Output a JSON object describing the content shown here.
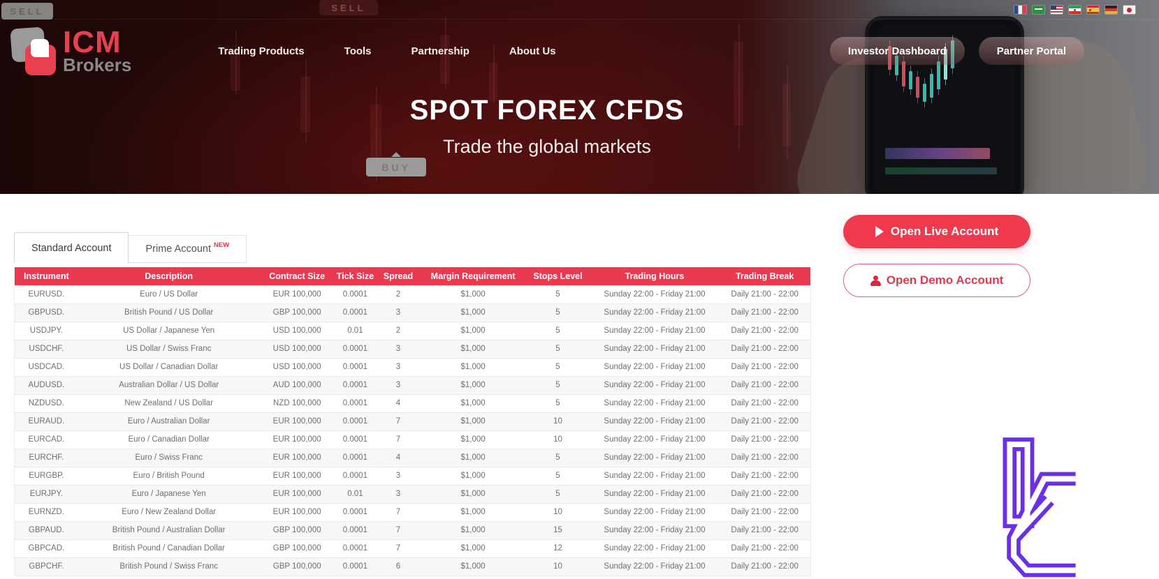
{
  "topbar": {
    "sell_badge_left": "SELL",
    "sell_badge_mid": "SELL",
    "flags": [
      {
        "name": "flag-france",
        "cls": "flag-fr"
      },
      {
        "name": "flag-saudi-arabia",
        "cls": "flag-sa"
      },
      {
        "name": "flag-usa",
        "cls": "flag-us"
      },
      {
        "name": "flag-iran",
        "cls": "flag-ir"
      },
      {
        "name": "flag-spain",
        "cls": "flag-es"
      },
      {
        "name": "flag-germany",
        "cls": "flag-de"
      },
      {
        "name": "flag-japan",
        "cls": "flag-jp"
      }
    ]
  },
  "header": {
    "logo": {
      "icm": "ICM",
      "brokers": "Brokers"
    },
    "nav": [
      {
        "label": "Trading Products"
      },
      {
        "label": "Tools"
      },
      {
        "label": "Partnership"
      },
      {
        "label": "About Us"
      }
    ],
    "buttons": {
      "investor": "Investor Dashboard",
      "partner": "Partner Portal"
    }
  },
  "hero": {
    "title": "SPOT FOREX CFDS",
    "subtitle": "Trade the global markets",
    "buy_badge": "BUY"
  },
  "tabs": {
    "standard": "Standard Account",
    "prime": "Prime Account",
    "prime_badge": "NEW"
  },
  "cta": {
    "live": "Open Live Account",
    "demo": "Open Demo Account"
  },
  "table": {
    "columns": [
      "Instrument",
      "Description",
      "Contract Size",
      "Tick Size",
      "Spread",
      "Margin Requirement",
      "Stops Level",
      "Trading Hours",
      "Trading Break"
    ],
    "rows": [
      [
        "EURUSD.",
        "Euro / US Dollar",
        "EUR 100,000",
        "0.0001",
        "2",
        "$1,000",
        "5",
        "Sunday 22:00 - Friday 21:00",
        "Daily 21:00 - 22:00"
      ],
      [
        "GBPUSD.",
        "British Pound / US Dollar",
        "GBP 100,000",
        "0.0001",
        "3",
        "$1,000",
        "5",
        "Sunday 22:00 - Friday 21:00",
        "Daily 21:00 - 22:00"
      ],
      [
        "USDJPY.",
        "US Dollar / Japanese Yen",
        "USD 100,000",
        "0.01",
        "2",
        "$1,000",
        "5",
        "Sunday 22:00 - Friday 21:00",
        "Daily 21:00 - 22:00"
      ],
      [
        "USDCHF.",
        "US Dollar / Swiss Franc",
        "USD 100,000",
        "0.0001",
        "3",
        "$1,000",
        "5",
        "Sunday 22:00 - Friday 21:00",
        "Daily 21:00 - 22:00"
      ],
      [
        "USDCAD.",
        "US Dollar / Canadian Dollar",
        "USD 100,000",
        "0.0001",
        "3",
        "$1,000",
        "5",
        "Sunday 22:00 - Friday 21:00",
        "Daily 21:00 - 22:00"
      ],
      [
        "AUDUSD.",
        "Australian Dollar / US Dollar",
        "AUD 100,000",
        "0.0001",
        "3",
        "$1,000",
        "5",
        "Sunday 22:00 - Friday 21:00",
        "Daily 21:00 - 22:00"
      ],
      [
        "NZDUSD.",
        "New Zealand / US Dollar",
        "NZD 100,000",
        "0.0001",
        "4",
        "$1,000",
        "5",
        "Sunday 22:00 - Friday 21:00",
        "Daily 21:00 - 22:00"
      ],
      [
        "EURAUD.",
        "Euro / Australian Dollar",
        "EUR 100,000",
        "0.0001",
        "7",
        "$1,000",
        "10",
        "Sunday 22:00 - Friday 21:00",
        "Daily 21:00 - 22:00"
      ],
      [
        "EURCAD.",
        "Euro / Canadian Dollar",
        "EUR 100,000",
        "0.0001",
        "7",
        "$1,000",
        "10",
        "Sunday 22:00 - Friday 21:00",
        "Daily 21:00 - 22:00"
      ],
      [
        "EURCHF.",
        "Euro / Swiss Franc",
        "EUR 100,000",
        "0.0001",
        "4",
        "$1,000",
        "5",
        "Sunday 22:00 - Friday 21:00",
        "Daily 21:00 - 22:00"
      ],
      [
        "EURGBP.",
        "Euro / British Pound",
        "EUR 100,000",
        "0.0001",
        "3",
        "$1,000",
        "5",
        "Sunday 22:00 - Friday 21:00",
        "Daily 21:00 - 22:00"
      ],
      [
        "EURJPY.",
        "Euro / Japanese Yen",
        "EUR 100,000",
        "0.01",
        "3",
        "$1,000",
        "5",
        "Sunday 22:00 - Friday 21:00",
        "Daily 21:00 - 22:00"
      ],
      [
        "EURNZD.",
        "Euro / New Zealand Dollar",
        "EUR 100,000",
        "0.0001",
        "7",
        "$1,000",
        "10",
        "Sunday 22:00 - Friday 21:00",
        "Daily 21:00 - 22:00"
      ],
      [
        "GBPAUD.",
        "British Pound / Australian Dollar",
        "GBP 100,000",
        "0.0001",
        "7",
        "$1,000",
        "15",
        "Sunday 22:00 - Friday 21:00",
        "Daily 21:00 - 22:00"
      ],
      [
        "GBPCAD.",
        "British Pound / Canadian Dollar",
        "GBP 100,000",
        "0.0001",
        "7",
        "$1,000",
        "12",
        "Sunday 22:00 - Friday 21:00",
        "Daily 21:00 - 22:00"
      ],
      [
        "GBPCHF.",
        "British Pound / Swiss Franc",
        "GBP 100,000",
        "0.0001",
        "6",
        "$1,000",
        "10",
        "Sunday 22:00 - Friday 21:00",
        "Daily 21:00 - 22:00"
      ]
    ]
  },
  "colors": {
    "accent_red": "#e8354d",
    "table_header_red": "#e93a52",
    "live_button_red": "#f0394d",
    "corner_logo_purple": "#6a2fe8",
    "brokers_gray": "#8a8a8a"
  }
}
